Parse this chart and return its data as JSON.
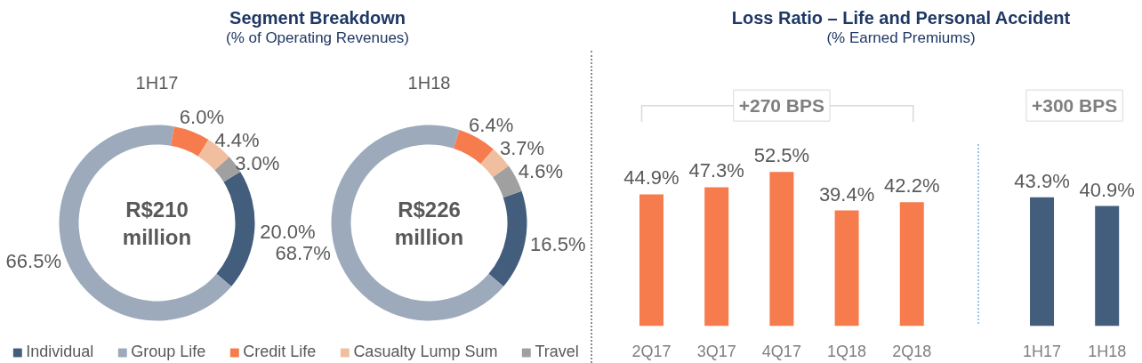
{
  "chart_data": [
    {
      "type": "donut",
      "title": "Segment Breakdown",
      "subtitle": "(% of Operating Revenues)",
      "annotations": [
        "R$210 million",
        "R$226 million"
      ],
      "categories": [
        "Individual",
        "Group Life",
        "Credit Life",
        "Casualty Lump Sum",
        "Travel"
      ],
      "colors": [
        "#435e7c",
        "#9daabb",
        "#f67b4d",
        "#f2bea0",
        "#a0a0a0"
      ],
      "legend": "bottom",
      "series": [
        {
          "name": "1H17",
          "values": [
            20.0,
            66.5,
            6.0,
            4.4,
            3.0
          ],
          "value_labels": [
            "20.0%",
            "66.5%",
            "6.0%",
            "4.4%",
            "3.0%"
          ]
        },
        {
          "name": "1H18",
          "values": [
            16.5,
            68.7,
            6.4,
            3.7,
            4.6
          ],
          "value_labels": [
            "16.5%",
            "68.7%",
            "6.4%",
            "3.7%",
            "4.6%"
          ]
        }
      ]
    },
    {
      "type": "bar",
      "title": "Loss Ratio – Life and Personal Accident",
      "subtitle": "(% Earned Premiums)",
      "annotations": [
        "+270 BPS"
      ],
      "categories": [
        "2Q17",
        "3Q17",
        "4Q17",
        "1Q18",
        "2Q18"
      ],
      "values": [
        44.9,
        47.3,
        52.5,
        39.4,
        42.2
      ],
      "color": "#f67b4d",
      "value_labels": [
        "44.9%",
        "47.3%",
        "52.5%",
        "39.4%",
        "42.2%"
      ]
    },
    {
      "type": "bar",
      "annotations": [
        "+300 BPS"
      ],
      "categories": [
        "1H17",
        "1H18"
      ],
      "values": [
        43.9,
        40.9
      ],
      "color": "#435e7c",
      "value_labels": [
        "43.9%",
        "40.9%"
      ]
    }
  ]
}
